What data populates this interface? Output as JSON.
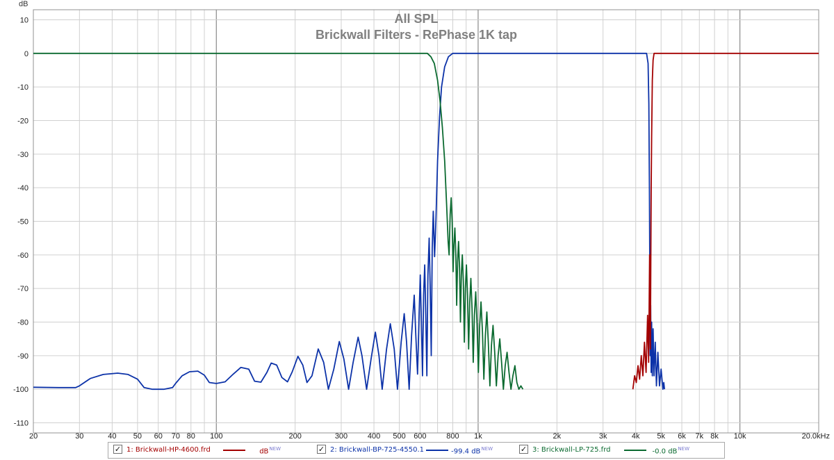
{
  "chart_data": {
    "type": "line",
    "title": "All SPL",
    "subtitle": "Brickwall Filters - RePhase 1K tap",
    "ylabel": "dB",
    "xscale": "log",
    "xlim": [
      20,
      20000
    ],
    "ylim": [
      -113,
      13
    ],
    "grid": true,
    "y_ticks": [
      "10",
      "0",
      "-10",
      "-20",
      "-30",
      "-40",
      "-50",
      "-60",
      "-70",
      "-80",
      "-90",
      "-100",
      "-110"
    ],
    "y_tick_values": [
      10,
      0,
      -10,
      -20,
      -30,
      -40,
      -50,
      -60,
      -70,
      -80,
      -90,
      -100,
      -110
    ],
    "x_ticks": [
      {
        "v": 20,
        "t": "20"
      },
      {
        "v": 30,
        "t": "30"
      },
      {
        "v": 40,
        "t": "40"
      },
      {
        "v": 50,
        "t": "50"
      },
      {
        "v": 60,
        "t": "60"
      },
      {
        "v": 70,
        "t": "70"
      },
      {
        "v": 80,
        "t": "80"
      },
      {
        "v": 100,
        "t": "100"
      },
      {
        "v": 200,
        "t": "200"
      },
      {
        "v": 300,
        "t": "300"
      },
      {
        "v": 400,
        "t": "400"
      },
      {
        "v": 500,
        "t": "500"
      },
      {
        "v": 600,
        "t": "600"
      },
      {
        "v": 800,
        "t": "800"
      },
      {
        "v": 1000,
        "t": "1k"
      },
      {
        "v": 2000,
        "t": "2k"
      },
      {
        "v": 3000,
        "t": "3k"
      },
      {
        "v": 4000,
        "t": "4k"
      },
      {
        "v": 5000,
        "t": "5k"
      },
      {
        "v": 6000,
        "t": "6k"
      },
      {
        "v": 7000,
        "t": "7k"
      },
      {
        "v": 8000,
        "t": "8k"
      },
      {
        "v": 10000,
        "t": "10k"
      },
      {
        "v": 20000,
        "t": "20.0kHz"
      }
    ],
    "x_grid": [
      20,
      30,
      40,
      50,
      60,
      70,
      80,
      90,
      100,
      200,
      300,
      400,
      500,
      600,
      700,
      800,
      900,
      1000,
      2000,
      3000,
      4000,
      5000,
      6000,
      7000,
      8000,
      9000,
      10000,
      20000
    ],
    "x_grid_major": [
      100,
      1000,
      10000
    ],
    "series": [
      {
        "name": "1: Brickwall-HP-4600.frd",
        "color": "#a30000",
        "value": "",
        "unit": "dB",
        "points": [
          [
            3900,
            -100
          ],
          [
            3960,
            -96
          ],
          [
            4020,
            -98
          ],
          [
            4080,
            -93
          ],
          [
            4140,
            -97
          ],
          [
            4200,
            -90
          ],
          [
            4260,
            -96
          ],
          [
            4320,
            -86
          ],
          [
            4380,
            -95
          ],
          [
            4440,
            -78
          ],
          [
            4480,
            -92
          ],
          [
            4520,
            -60
          ],
          [
            4550,
            -88
          ],
          [
            4580,
            -42
          ],
          [
            4600,
            -25
          ],
          [
            4630,
            -8
          ],
          [
            4660,
            -2
          ],
          [
            4700,
            0
          ],
          [
            5000,
            0
          ],
          [
            10000,
            0
          ],
          [
            20000,
            0
          ]
        ]
      },
      {
        "name": "2: Brickwall-BP-725-4550.1",
        "color": "#0c32a8",
        "value": "-99.4",
        "unit": "dB",
        "points": [
          [
            20,
            -99.4
          ],
          [
            25,
            -99.5
          ],
          [
            29,
            -99.5
          ],
          [
            30,
            -99
          ],
          [
            33,
            -96.8
          ],
          [
            37,
            -95.6
          ],
          [
            42,
            -95.2
          ],
          [
            46,
            -95.6
          ],
          [
            50,
            -97
          ],
          [
            53,
            -99.5
          ],
          [
            57,
            -100
          ],
          [
            63,
            -100
          ],
          [
            68,
            -99.5
          ],
          [
            70,
            -98.2
          ],
          [
            74,
            -96
          ],
          [
            79,
            -94.8
          ],
          [
            85,
            -94.6
          ],
          [
            90,
            -95.8
          ],
          [
            94,
            -98
          ],
          [
            100,
            -98.3
          ],
          [
            108,
            -97.8
          ],
          [
            116,
            -95.5
          ],
          [
            124,
            -93.5
          ],
          [
            133,
            -94
          ],
          [
            140,
            -97.6
          ],
          [
            148,
            -97.9
          ],
          [
            156,
            -95
          ],
          [
            162,
            -92.2
          ],
          [
            170,
            -92.8
          ],
          [
            178,
            -96.5
          ],
          [
            187,
            -97.8
          ],
          [
            195,
            -94.8
          ],
          [
            205,
            -90.2
          ],
          [
            214,
            -92.8
          ],
          [
            222,
            -98
          ],
          [
            232,
            -96
          ],
          [
            245,
            -88
          ],
          [
            257,
            -92
          ],
          [
            268,
            -100
          ],
          [
            281,
            -94
          ],
          [
            295,
            -85.8
          ],
          [
            307,
            -91
          ],
          [
            320,
            -100
          ],
          [
            333,
            -92
          ],
          [
            348,
            -84.5
          ],
          [
            360,
            -90
          ],
          [
            375,
            -100
          ],
          [
            390,
            -91
          ],
          [
            405,
            -83
          ],
          [
            418,
            -90
          ],
          [
            430,
            -100
          ],
          [
            447,
            -88
          ],
          [
            462,
            -80.5
          ],
          [
            478,
            -88
          ],
          [
            492,
            -100
          ],
          [
            508,
            -86
          ],
          [
            522,
            -77.5
          ],
          [
            533,
            -86
          ],
          [
            545,
            -100
          ],
          [
            557,
            -84
          ],
          [
            570,
            -72
          ],
          [
            578,
            -84
          ],
          [
            587,
            -95.5
          ],
          [
            595,
            -78
          ],
          [
            601,
            -66
          ],
          [
            607,
            -80
          ],
          [
            613,
            -96
          ],
          [
            619,
            -72
          ],
          [
            625,
            -63
          ],
          [
            631,
            -78
          ],
          [
            637,
            -96
          ],
          [
            643,
            -66
          ],
          [
            650,
            -55
          ],
          [
            656,
            -70
          ],
          [
            662,
            -90
          ],
          [
            668,
            -58
          ],
          [
            674,
            -47
          ],
          [
            682,
            -60.5
          ],
          [
            690,
            -50
          ],
          [
            700,
            -32
          ],
          [
            712,
            -19
          ],
          [
            725,
            -10
          ],
          [
            745,
            -4
          ],
          [
            770,
            -1
          ],
          [
            800,
            0
          ],
          [
            1000,
            0
          ],
          [
            2000,
            0
          ],
          [
            4000,
            0
          ],
          [
            4400,
            0
          ],
          [
            4460,
            -3
          ],
          [
            4490,
            -15
          ],
          [
            4510,
            -40
          ],
          [
            4530,
            -70
          ],
          [
            4545,
            -90
          ],
          [
            4560,
            -75
          ],
          [
            4580,
            -95
          ],
          [
            4600,
            -80
          ],
          [
            4630,
            -96
          ],
          [
            4660,
            -82
          ],
          [
            4700,
            -96
          ],
          [
            4750,
            -86
          ],
          [
            4800,
            -99
          ],
          [
            4860,
            -89
          ],
          [
            4930,
            -99
          ],
          [
            5000,
            -94
          ],
          [
            5080,
            -100
          ],
          [
            5120,
            -98
          ],
          [
            5150,
            -100
          ]
        ]
      },
      {
        "name": "3: Brickwall-LP-725.frd",
        "color": "#0b6a30",
        "value": "-0.0",
        "unit": "dB",
        "points": [
          [
            20,
            0
          ],
          [
            500,
            0
          ],
          [
            640,
            0
          ],
          [
            660,
            -1
          ],
          [
            680,
            -3
          ],
          [
            700,
            -8
          ],
          [
            715,
            -14
          ],
          [
            730,
            -22
          ],
          [
            745,
            -32
          ],
          [
            758,
            -45
          ],
          [
            768,
            -56
          ],
          [
            775,
            -60
          ],
          [
            782,
            -48
          ],
          [
            789,
            -43
          ],
          [
            796,
            -50
          ],
          [
            802,
            -65
          ],
          [
            808,
            -57
          ],
          [
            815,
            -52
          ],
          [
            822,
            -60
          ],
          [
            828,
            -75
          ],
          [
            835,
            -62
          ],
          [
            842,
            -56
          ],
          [
            849,
            -64
          ],
          [
            856,
            -80
          ],
          [
            863,
            -66
          ],
          [
            870,
            -60
          ],
          [
            878,
            -68
          ],
          [
            886,
            -86
          ],
          [
            894,
            -70
          ],
          [
            902,
            -63
          ],
          [
            911,
            -72
          ],
          [
            920,
            -88
          ],
          [
            929,
            -74
          ],
          [
            938,
            -67
          ],
          [
            948,
            -76
          ],
          [
            958,
            -92
          ],
          [
            968,
            -78
          ],
          [
            979,
            -71
          ],
          [
            990,
            -80
          ],
          [
            1002,
            -95
          ],
          [
            1014,
            -81
          ],
          [
            1026,
            -74
          ],
          [
            1039,
            -83
          ],
          [
            1052,
            -97
          ],
          [
            1066,
            -84
          ],
          [
            1080,
            -77
          ],
          [
            1094,
            -86
          ],
          [
            1109,
            -99
          ],
          [
            1124,
            -87
          ],
          [
            1140,
            -81
          ],
          [
            1157,
            -89
          ],
          [
            1174,
            -99
          ],
          [
            1192,
            -90
          ],
          [
            1210,
            -85
          ],
          [
            1229,
            -92
          ],
          [
            1249,
            -100
          ],
          [
            1269,
            -93
          ],
          [
            1290,
            -89
          ],
          [
            1312,
            -95
          ],
          [
            1335,
            -100
          ],
          [
            1358,
            -96
          ],
          [
            1382,
            -93
          ],
          [
            1406,
            -98
          ],
          [
            1431,
            -100
          ],
          [
            1457,
            -99
          ],
          [
            1483,
            -100
          ]
        ]
      }
    ]
  }
}
